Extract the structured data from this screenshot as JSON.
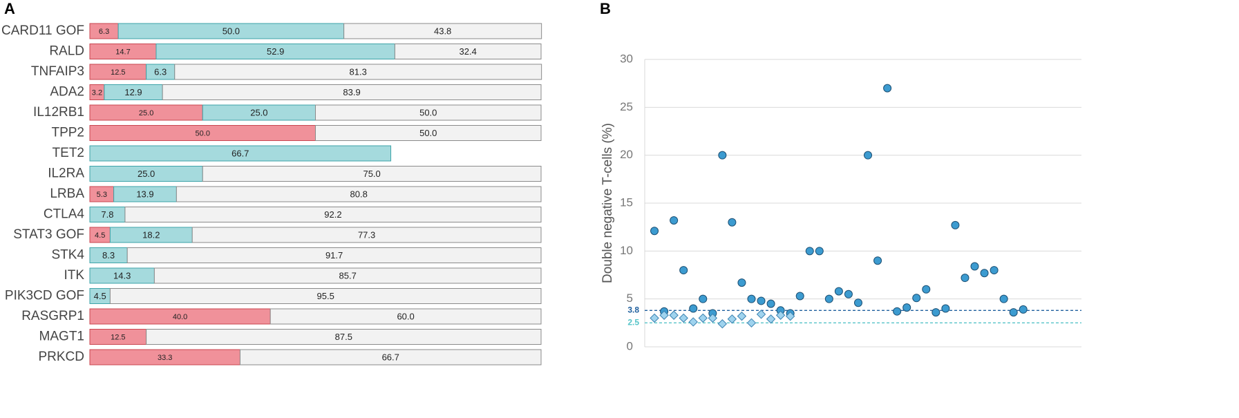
{
  "chart_data": [
    {
      "type": "bar",
      "panel": "A",
      "orientation": "horizontal",
      "stacked": true,
      "categories": [
        "CARD11 GOF",
        "RALD",
        "TNFAIP3",
        "ADA2",
        "IL12RB1",
        "TPP2",
        "TET2",
        "IL2RA",
        "LRBA",
        "CTLA4",
        "STAT3 GOF",
        "STK4",
        "ITK",
        "PIK3CD GOF",
        "RASGRP1",
        "MAGT1",
        "PRKCD"
      ],
      "xlim": [
        0,
        100
      ],
      "series": [
        {
          "color": "#f0919a",
          "stroke": "#c8454f",
          "values": [
            6.3,
            14.7,
            12.5,
            3.2,
            25,
            50,
            null,
            null,
            5.3,
            null,
            4.5,
            null,
            null,
            null,
            40,
            12.5,
            33.3
          ],
          "value_labels": [
            "6.3",
            "14.7",
            "12.5",
            "3.2",
            "25.0",
            "50.0",
            null,
            null,
            "5.3",
            null,
            "4.5",
            null,
            null,
            null,
            "40.0",
            "12.5",
            "33.3"
          ]
        },
        {
          "color": "#a5dadd",
          "stroke": "#3da3a8",
          "values": [
            50,
            52.9,
            6.3,
            12.9,
            25,
            null,
            66.7,
            25,
            13.9,
            7.8,
            18.2,
            8.3,
            14.3,
            4.5,
            null,
            null,
            null
          ],
          "value_labels": [
            "50.0",
            "52.9",
            "6.3",
            "12.9",
            "25.0",
            null,
            "66.7",
            "25.0",
            "13.9",
            "7.8",
            "18.2",
            "8.3",
            "14.3",
            "4.5",
            null,
            null,
            null
          ]
        },
        {
          "color": "#f2f2f2",
          "stroke": "#8a8a8a",
          "values": [
            43.8,
            32.4,
            81.3,
            83.9,
            50,
            50,
            null,
            75,
            80.8,
            92.2,
            77.3,
            91.7,
            85.7,
            95.5,
            60,
            87.5,
            66.7
          ],
          "value_labels": [
            "43.8",
            "32.4",
            "81.3",
            "83.9",
            "50.0",
            "50.0",
            null,
            "75.0",
            "80.8",
            "92.2",
            "77.3",
            "91.7",
            "85.7",
            "95.5",
            "60.0",
            "87.5",
            "66.7"
          ]
        }
      ]
    },
    {
      "type": "scatter",
      "panel": "B",
      "y_label": "Double negative T-cells (%)",
      "xlim": [
        0,
        45
      ],
      "ylim": [
        0,
        30
      ],
      "yticks": [
        0,
        5,
        10,
        15,
        20,
        25,
        30
      ],
      "grid": true,
      "series": [
        {
          "marker": "circle",
          "color": "#3c9bd0",
          "x": [
            1,
            2,
            3,
            4,
            5,
            6,
            7,
            8,
            9,
            10,
            11,
            12,
            13,
            14,
            15,
            16,
            17,
            18,
            19,
            20,
            21,
            22,
            23,
            24,
            25,
            26,
            27,
            28,
            29,
            30,
            31,
            32,
            33,
            34,
            35,
            36,
            37,
            38,
            39
          ],
          "values": [
            12.1,
            3.7,
            13.2,
            8.0,
            4.0,
            5.0,
            3.5,
            20.0,
            13.0,
            6.7,
            5.0,
            4.8,
            4.5,
            3.8,
            3.5,
            5.3,
            10.0,
            10.0,
            5.0,
            5.8,
            5.5,
            4.6,
            20.0,
            9.0,
            27.0,
            3.7,
            4.1,
            5.1,
            6.0,
            3.6,
            4.0,
            12.7,
            7.2,
            8.4,
            7.7,
            8.0,
            5.0,
            3.6,
            3.9
          ]
        },
        {
          "marker": "diamond",
          "color": "#9fd3ee",
          "x": [
            1,
            2,
            3,
            4,
            5,
            6,
            7,
            8,
            9,
            10,
            11,
            12,
            13,
            14,
            15
          ],
          "values": [
            3.0,
            3.3,
            3.3,
            3.0,
            2.6,
            3.0,
            3.0,
            2.4,
            2.9,
            3.2,
            2.5,
            3.4,
            2.9,
            3.3,
            3.2
          ]
        }
      ],
      "reference_lines": [
        {
          "value": 3.8,
          "color": "#1f5f9e"
        },
        {
          "value": 2.5,
          "color": "#55c4c8"
        }
      ]
    }
  ]
}
